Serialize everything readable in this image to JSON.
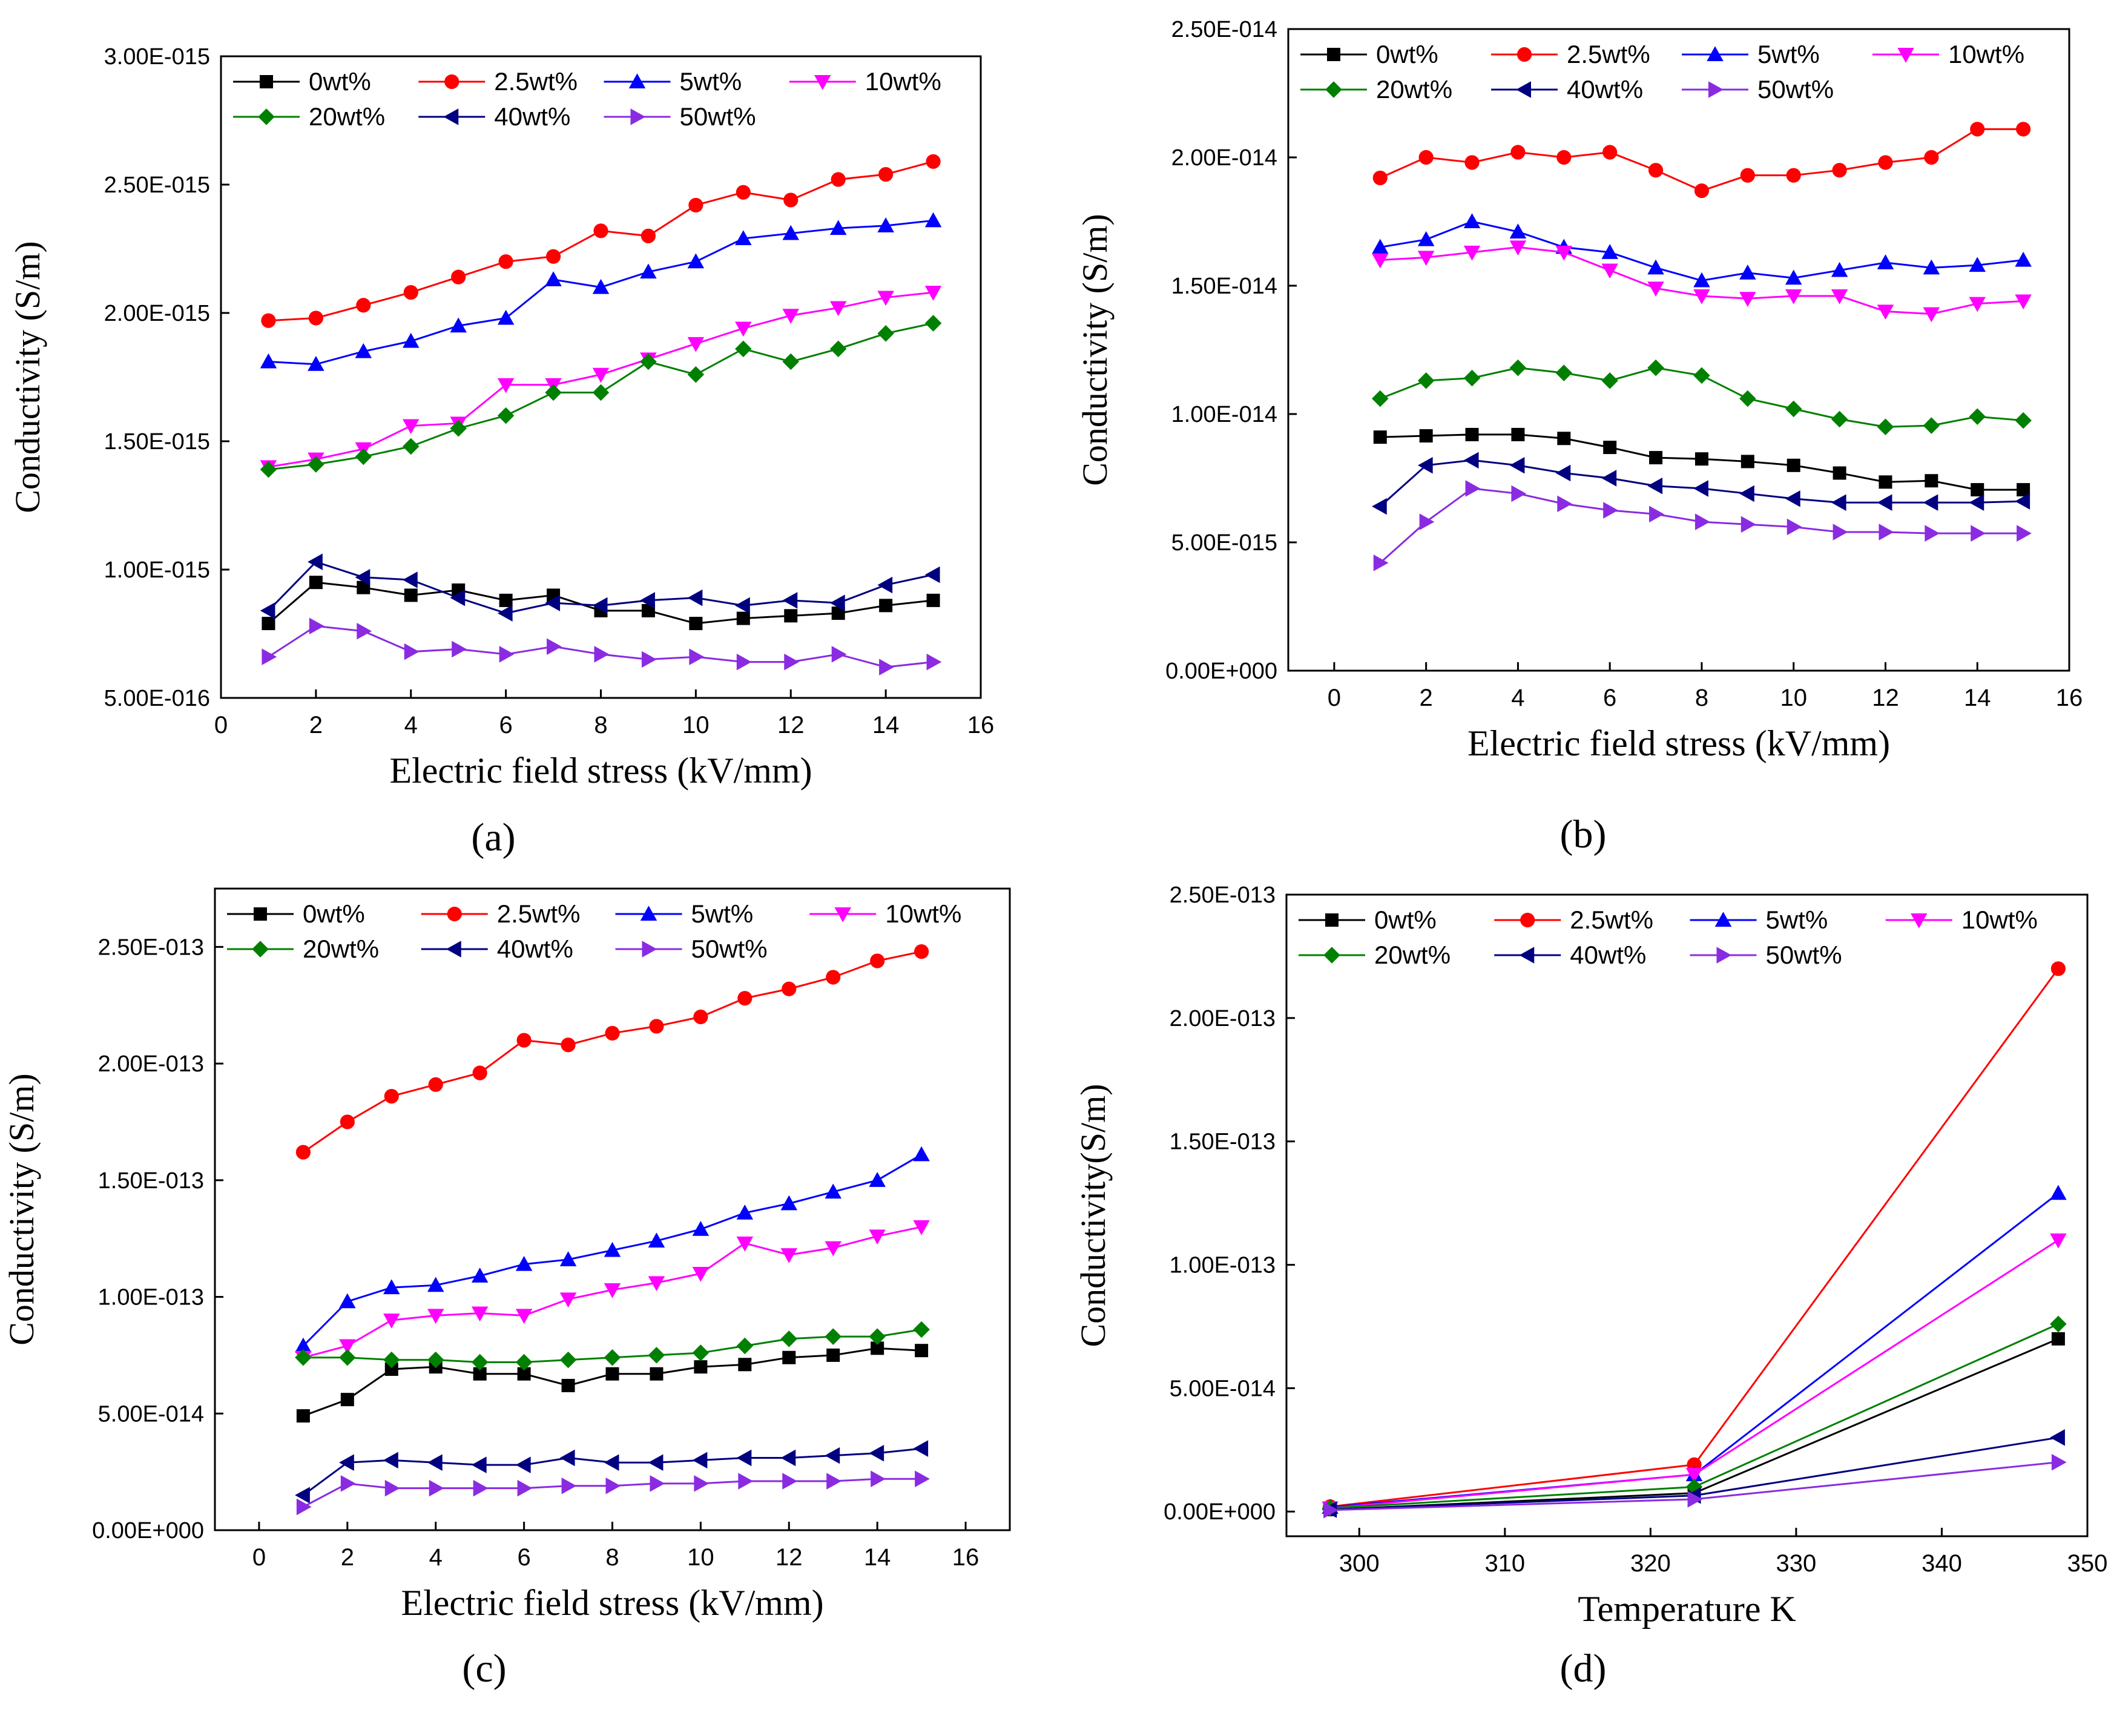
{
  "figure": {
    "panel_labels": [
      "(a)",
      "(b)",
      "(c)",
      "(d)"
    ]
  },
  "chart_data": [
    {
      "id": "a",
      "type": "line",
      "panel_label": "(a)",
      "xlabel": "Electric field stress (kV/mm)",
      "ylabel": "Conductivity (S/m)",
      "xlim": [
        0,
        16
      ],
      "ylim": [
        5e-16,
        3e-15
      ],
      "xticks": [
        0,
        2,
        4,
        6,
        8,
        10,
        12,
        14,
        16
      ],
      "xtick_labels": [
        "0",
        "2",
        "4",
        "6",
        "8",
        "10",
        "12",
        "14",
        "16"
      ],
      "yticks": [
        5e-16,
        1e-15,
        1.5e-15,
        2e-15,
        2.5e-15,
        3e-15
      ],
      "ytick_labels": [
        "5.00E-016",
        "1.00E-015",
        "1.50E-015",
        "2.00E-015",
        "2.50E-015",
        "3.00E-015"
      ],
      "legend_position": "top",
      "x": [
        1,
        2,
        3,
        4,
        5,
        6,
        7,
        8,
        9,
        10,
        11,
        12,
        13,
        14,
        15
      ],
      "series": [
        {
          "name": "0wt%",
          "color": "#000000",
          "marker": "square",
          "values": [
            7.9e-16,
            9.5e-16,
            9.3e-16,
            9e-16,
            9.2e-16,
            8.8e-16,
            9e-16,
            8.4e-16,
            8.4e-16,
            7.9e-16,
            8.1e-16,
            8.2e-16,
            8.3e-16,
            8.6e-16,
            8.8e-16
          ]
        },
        {
          "name": "2.5wt%",
          "color": "#ff0000",
          "marker": "circle",
          "values": [
            1.97e-15,
            1.98e-15,
            2.03e-15,
            2.08e-15,
            2.14e-15,
            2.2e-15,
            2.22e-15,
            2.32e-15,
            2.3e-15,
            2.42e-15,
            2.47e-15,
            2.44e-15,
            2.52e-15,
            2.54e-15,
            2.59e-15
          ]
        },
        {
          "name": "5wt%",
          "color": "#0000ff",
          "marker": "triangle-up",
          "values": [
            1.81e-15,
            1.8e-15,
            1.85e-15,
            1.89e-15,
            1.95e-15,
            1.98e-15,
            2.13e-15,
            2.1e-15,
            2.16e-15,
            2.2e-15,
            2.29e-15,
            2.31e-15,
            2.33e-15,
            2.34e-15,
            2.36e-15
          ]
        },
        {
          "name": "10wt%",
          "color": "#ff00ff",
          "marker": "triangle-down",
          "values": [
            1.4e-15,
            1.43e-15,
            1.47e-15,
            1.56e-15,
            1.57e-15,
            1.72e-15,
            1.72e-15,
            1.76e-15,
            1.82e-15,
            1.88e-15,
            1.94e-15,
            1.99e-15,
            2.02e-15,
            2.06e-15,
            2.08e-15
          ]
        },
        {
          "name": "20wt%",
          "color": "#008000",
          "marker": "diamond",
          "values": [
            1.39e-15,
            1.41e-15,
            1.44e-15,
            1.48e-15,
            1.55e-15,
            1.6e-15,
            1.69e-15,
            1.69e-15,
            1.81e-15,
            1.76e-15,
            1.86e-15,
            1.81e-15,
            1.86e-15,
            1.92e-15,
            1.96e-15
          ]
        },
        {
          "name": "40wt%",
          "color": "#000080",
          "marker": "triangle-left",
          "values": [
            8.4e-16,
            1.03e-15,
            9.7e-16,
            9.6e-16,
            8.9e-16,
            8.3e-16,
            8.7e-16,
            8.6e-16,
            8.8e-16,
            8.9e-16,
            8.6e-16,
            8.8e-16,
            8.7e-16,
            9.4e-16,
            9.8e-16
          ]
        },
        {
          "name": "50wt%",
          "color": "#8a2be2",
          "marker": "triangle-right",
          "values": [
            6.6e-16,
            7.8e-16,
            7.6e-16,
            6.8e-16,
            6.9e-16,
            6.7e-16,
            7e-16,
            6.7e-16,
            6.5e-16,
            6.6e-16,
            6.4e-16,
            6.4e-16,
            6.7e-16,
            6.2e-16,
            6.4e-16
          ]
        }
      ]
    },
    {
      "id": "b",
      "type": "line",
      "panel_label": "(b)",
      "xlabel": "Electric field stress (kV/mm)",
      "ylabel": "Conductivity (S/m)",
      "xlim": [
        -1,
        16
      ],
      "ylim": [
        0,
        2.5e-14
      ],
      "xticks": [
        0,
        2,
        4,
        6,
        8,
        10,
        12,
        14,
        16
      ],
      "xtick_labels": [
        "0",
        "2",
        "4",
        "6",
        "8",
        "10",
        "12",
        "14",
        "16"
      ],
      "yticks": [
        0,
        5e-15,
        1e-14,
        1.5e-14,
        2e-14,
        2.5e-14
      ],
      "ytick_labels": [
        "0.00E+000",
        "5.00E-015",
        "1.00E-014",
        "1.50E-014",
        "2.00E-014",
        "2.50E-014"
      ],
      "legend_position": "top",
      "x": [
        1,
        2,
        3,
        4,
        5,
        6,
        7,
        8,
        9,
        10,
        11,
        12,
        13,
        14,
        15
      ],
      "series": [
        {
          "name": "0wt%",
          "color": "#000000",
          "marker": "square",
          "values": [
            9.1e-15,
            9.15e-15,
            9.2e-15,
            9.2e-15,
            9.05e-15,
            8.7e-15,
            8.3e-15,
            8.25e-15,
            8.15e-15,
            8e-15,
            7.7e-15,
            7.35e-15,
            7.4e-15,
            7.05e-15,
            7.05e-15
          ]
        },
        {
          "name": "2.5wt%",
          "color": "#ff0000",
          "marker": "circle",
          "values": [
            1.92e-14,
            2e-14,
            1.98e-14,
            2.02e-14,
            2e-14,
            2.02e-14,
            1.95e-14,
            1.87e-14,
            1.93e-14,
            1.93e-14,
            1.95e-14,
            1.98e-14,
            2e-14,
            2.11e-14,
            2.11e-14
          ]
        },
        {
          "name": "5wt%",
          "color": "#0000ff",
          "marker": "triangle-up",
          "values": [
            1.65e-14,
            1.68e-14,
            1.75e-14,
            1.71e-14,
            1.65e-14,
            1.63e-14,
            1.57e-14,
            1.52e-14,
            1.55e-14,
            1.53e-14,
            1.56e-14,
            1.59e-14,
            1.57e-14,
            1.58e-14,
            1.6e-14
          ]
        },
        {
          "name": "10wt%",
          "color": "#ff00ff",
          "marker": "triangle-down",
          "values": [
            1.6e-14,
            1.61e-14,
            1.63e-14,
            1.65e-14,
            1.63e-14,
            1.56e-14,
            1.49e-14,
            1.46e-14,
            1.45e-14,
            1.46e-14,
            1.46e-14,
            1.4e-14,
            1.39e-14,
            1.43e-14,
            1.44e-14
          ]
        },
        {
          "name": "20wt%",
          "color": "#008000",
          "marker": "diamond",
          "values": [
            1.06e-14,
            1.13e-14,
            1.14e-14,
            1.18e-14,
            1.16e-14,
            1.13e-14,
            1.18e-14,
            1.15e-14,
            1.06e-14,
            1.02e-14,
            9.8e-15,
            9.5e-15,
            9.55e-15,
            9.9e-15,
            9.75e-15
          ]
        },
        {
          "name": "40wt%",
          "color": "#000080",
          "marker": "triangle-left",
          "values": [
            6.4e-15,
            8e-15,
            8.2e-15,
            8e-15,
            7.7e-15,
            7.5e-15,
            7.2e-15,
            7.1e-15,
            6.9e-15,
            6.7e-15,
            6.55e-15,
            6.55e-15,
            6.55e-15,
            6.55e-15,
            6.6e-15
          ]
        },
        {
          "name": "50wt%",
          "color": "#8a2be2",
          "marker": "triangle-right",
          "values": [
            4.2e-15,
            5.8e-15,
            7.1e-15,
            6.9e-15,
            6.5e-15,
            6.25e-15,
            6.1e-15,
            5.8e-15,
            5.7e-15,
            5.6e-15,
            5.4e-15,
            5.4e-15,
            5.35e-15,
            5.35e-15,
            5.35e-15
          ]
        }
      ]
    },
    {
      "id": "c",
      "type": "line",
      "panel_label": "(c)",
      "xlabel": "Electric field stress (kV/mm)",
      "ylabel": "Conductivity (S/m)",
      "xlim": [
        -1,
        17
      ],
      "ylim": [
        0,
        2.75e-13
      ],
      "xticks": [
        0,
        2,
        4,
        6,
        8,
        10,
        12,
        14,
        16
      ],
      "xtick_labels": [
        "0",
        "2",
        "4",
        "6",
        "8",
        "10",
        "12",
        "14",
        "16"
      ],
      "yticks": [
        0,
        5e-14,
        1e-13,
        1.5e-13,
        2e-13,
        2.5e-13
      ],
      "ytick_labels": [
        "0.00E+000",
        "5.00E-014",
        "1.00E-013",
        "1.50E-013",
        "2.00E-013",
        "2.50E-013"
      ],
      "legend_position": "top",
      "x": [
        1,
        2,
        3,
        4,
        5,
        6,
        7,
        8,
        9,
        10,
        11,
        12,
        13,
        14,
        15
      ],
      "series": [
        {
          "name": "0wt%",
          "color": "#000000",
          "marker": "square",
          "values": [
            4.9e-14,
            5.6e-14,
            6.9e-14,
            7e-14,
            6.7e-14,
            6.7e-14,
            6.2e-14,
            6.7e-14,
            6.7e-14,
            7e-14,
            7.1e-14,
            7.4e-14,
            7.5e-14,
            7.8e-14,
            7.7e-14
          ]
        },
        {
          "name": "2.5wt%",
          "color": "#ff0000",
          "marker": "circle",
          "values": [
            1.62e-13,
            1.75e-13,
            1.86e-13,
            1.91e-13,
            1.96e-13,
            2.1e-13,
            2.08e-13,
            2.13e-13,
            2.16e-13,
            2.2e-13,
            2.28e-13,
            2.32e-13,
            2.37e-13,
            2.44e-13,
            2.48e-13
          ]
        },
        {
          "name": "5wt%",
          "color": "#0000ff",
          "marker": "triangle-up",
          "values": [
            7.9e-14,
            9.8e-14,
            1.04e-13,
            1.05e-13,
            1.09e-13,
            1.14e-13,
            1.16e-13,
            1.2e-13,
            1.24e-13,
            1.29e-13,
            1.36e-13,
            1.4e-13,
            1.45e-13,
            1.5e-13,
            1.61e-13
          ]
        },
        {
          "name": "10wt%",
          "color": "#ff00ff",
          "marker": "triangle-down",
          "values": [
            7.4e-14,
            7.9e-14,
            9e-14,
            9.2e-14,
            9.3e-14,
            9.2e-14,
            9.9e-14,
            1.03e-13,
            1.06e-13,
            1.1e-13,
            1.23e-13,
            1.18e-13,
            1.21e-13,
            1.26e-13,
            1.3e-13
          ]
        },
        {
          "name": "20wt%",
          "color": "#008000",
          "marker": "diamond",
          "values": [
            7.4e-14,
            7.4e-14,
            7.3e-14,
            7.3e-14,
            7.2e-14,
            7.2e-14,
            7.3e-14,
            7.4e-14,
            7.5e-14,
            7.6e-14,
            7.9e-14,
            8.2e-14,
            8.3e-14,
            8.3e-14,
            8.6e-14
          ]
        },
        {
          "name": "40wt%",
          "color": "#000080",
          "marker": "triangle-left",
          "values": [
            1.5e-14,
            2.9e-14,
            3e-14,
            2.9e-14,
            2.8e-14,
            2.8e-14,
            3.1e-14,
            2.9e-14,
            2.9e-14,
            3e-14,
            3.1e-14,
            3.1e-14,
            3.2e-14,
            3.3e-14,
            3.5e-14
          ]
        },
        {
          "name": "50wt%",
          "color": "#8a2be2",
          "marker": "triangle-right",
          "values": [
            1e-14,
            2e-14,
            1.8e-14,
            1.8e-14,
            1.8e-14,
            1.8e-14,
            1.9e-14,
            1.9e-14,
            2e-14,
            2e-14,
            2.1e-14,
            2.1e-14,
            2.1e-14,
            2.2e-14,
            2.2e-14
          ]
        }
      ]
    },
    {
      "id": "d",
      "type": "line",
      "panel_label": "(d)",
      "xlabel": "Temperature K",
      "ylabel": "Conductivity(S/m)",
      "xlim": [
        295,
        350
      ],
      "ylim": [
        -1e-14,
        2.5e-13
      ],
      "xticks": [
        300,
        310,
        320,
        330,
        340,
        350
      ],
      "xtick_labels": [
        "300",
        "310",
        "320",
        "330",
        "340",
        "350"
      ],
      "yticks": [
        0,
        5e-14,
        1e-13,
        1.5e-13,
        2e-13,
        2.5e-13
      ],
      "ytick_labels": [
        "0.00E+000",
        "5.00E-014",
        "1.00E-013",
        "1.50E-013",
        "2.00E-013",
        "2.50E-013"
      ],
      "legend_position": "top",
      "x": [
        298,
        323,
        348
      ],
      "series": [
        {
          "name": "0wt%",
          "color": "#000000",
          "marker": "square",
          "values": [
            8e-16,
            7.5e-15,
            7e-14
          ]
        },
        {
          "name": "2.5wt%",
          "color": "#ff0000",
          "marker": "circle",
          "values": [
            2e-15,
            1.9e-14,
            2.2e-13
          ]
        },
        {
          "name": "5wt%",
          "color": "#0000ff",
          "marker": "triangle-up",
          "values": [
            1.8e-15,
            1.5e-14,
            1.29e-13
          ]
        },
        {
          "name": "10wt%",
          "color": "#ff00ff",
          "marker": "triangle-down",
          "values": [
            1.4e-15,
            1.5e-14,
            1.1e-13
          ]
        },
        {
          "name": "20wt%",
          "color": "#008000",
          "marker": "diamond",
          "values": [
            1.4e-15,
            1e-14,
            7.6e-14
          ]
        },
        {
          "name": "40wt%",
          "color": "#000080",
          "marker": "triangle-left",
          "values": [
            8e-16,
            6.5e-15,
            3e-14
          ]
        },
        {
          "name": "50wt%",
          "color": "#8a2be2",
          "marker": "triangle-right",
          "values": [
            6e-16,
            5e-15,
            2e-14
          ]
        }
      ]
    }
  ]
}
